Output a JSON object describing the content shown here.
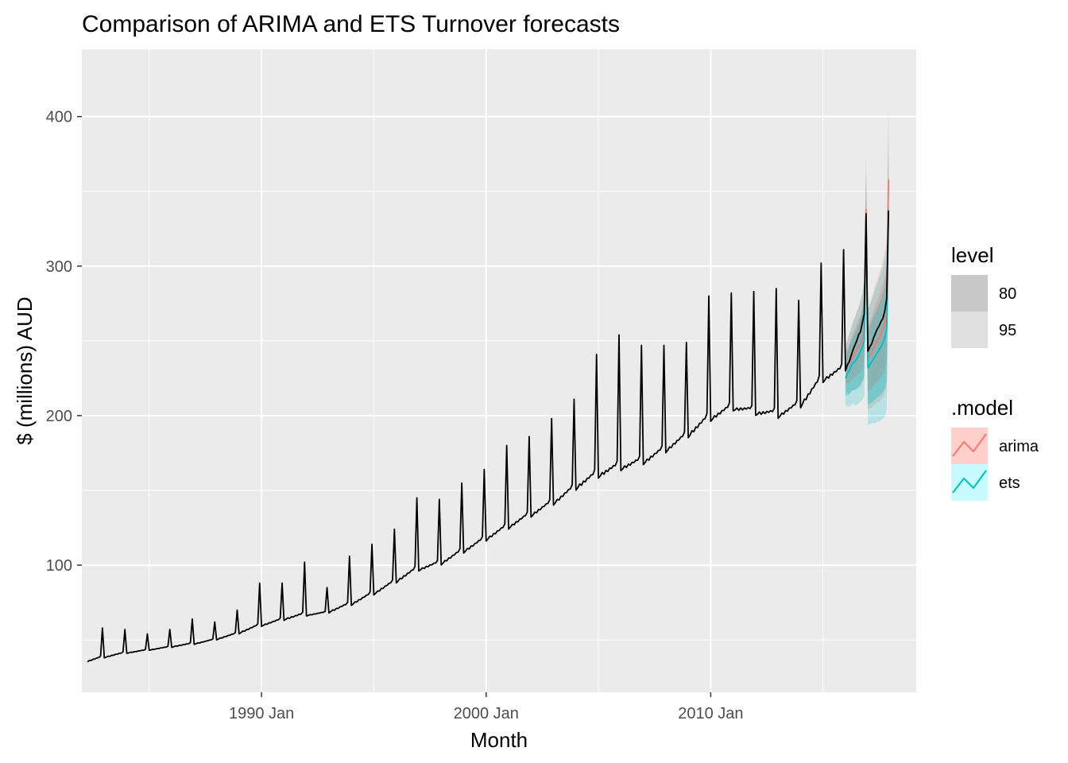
{
  "chart_data": {
    "type": "line",
    "title": "Comparison of ARIMA and ETS Turnover forecasts",
    "xlabel": "Month",
    "ylabel": "$ (millions) AUD",
    "xlim": [
      1982.0,
      2019.15
    ],
    "ylim": [
      15,
      445
    ],
    "x_ticks": [
      {
        "value": 1990,
        "label": "1990 Jan"
      },
      {
        "value": 2000,
        "label": "2000 Jan"
      },
      {
        "value": 2010,
        "label": "2010 Jan"
      }
    ],
    "y_ticks": [
      {
        "value": 100,
        "label": "100"
      },
      {
        "value": 200,
        "label": "200"
      },
      {
        "value": 300,
        "label": "300"
      },
      {
        "value": 400,
        "label": "400"
      }
    ],
    "grid": true,
    "background": "#ebebeb",
    "history": {
      "color": "#000000",
      "start": [
        1982,
        4
      ],
      "end": [
        2015,
        12
      ],
      "anchors": [
        {
          "year": 1982,
          "base": 34,
          "peak": 58
        },
        {
          "year": 1983,
          "base": 38,
          "peak": 57
        },
        {
          "year": 1984,
          "base": 41,
          "peak": 54
        },
        {
          "year": 1985,
          "base": 43,
          "peak": 57
        },
        {
          "year": 1986,
          "base": 45,
          "peak": 64
        },
        {
          "year": 1987,
          "base": 47,
          "peak": 62
        },
        {
          "year": 1988,
          "base": 50,
          "peak": 70
        },
        {
          "year": 1989,
          "base": 54,
          "peak": 88
        },
        {
          "year": 1990,
          "base": 59,
          "peak": 88
        },
        {
          "year": 1991,
          "base": 63,
          "peak": 102
        },
        {
          "year": 1992,
          "base": 66,
          "peak": 85
        },
        {
          "year": 1993,
          "base": 68,
          "peak": 106
        },
        {
          "year": 1994,
          "base": 73,
          "peak": 114
        },
        {
          "year": 1995,
          "base": 80,
          "peak": 124
        },
        {
          "year": 1996,
          "base": 88,
          "peak": 145
        },
        {
          "year": 1997,
          "base": 96,
          "peak": 144
        },
        {
          "year": 1998,
          "base": 100,
          "peak": 155
        },
        {
          "year": 1999,
          "base": 108,
          "peak": 164
        },
        {
          "year": 2000,
          "base": 116,
          "peak": 180
        },
        {
          "year": 2001,
          "base": 124,
          "peak": 186
        },
        {
          "year": 2002,
          "base": 132,
          "peak": 198
        },
        {
          "year": 2003,
          "base": 140,
          "peak": 211
        },
        {
          "year": 2004,
          "base": 150,
          "peak": 241
        },
        {
          "year": 2005,
          "base": 158,
          "peak": 254
        },
        {
          "year": 2006,
          "base": 163,
          "peak": 247
        },
        {
          "year": 2007,
          "base": 167,
          "peak": 247
        },
        {
          "year": 2008,
          "base": 175,
          "peak": 249
        },
        {
          "year": 2009,
          "base": 185,
          "peak": 280
        },
        {
          "year": 2010,
          "base": 196,
          "peak": 282
        },
        {
          "year": 2011,
          "base": 203,
          "peak": 283
        },
        {
          "year": 2012,
          "base": 200,
          "peak": 285
        },
        {
          "year": 2013,
          "base": 198,
          "peak": 277
        },
        {
          "year": 2014,
          "base": 205,
          "peak": 302
        },
        {
          "year": 2015,
          "base": 222,
          "peak": 311
        }
      ]
    },
    "test_actual": {
      "color": "#000000",
      "start": [
        2016,
        1
      ],
      "values": [
        230,
        234,
        236,
        240,
        244,
        247,
        250,
        254,
        256,
        262,
        268,
        335,
        243,
        246,
        248,
        252,
        255,
        258,
        260,
        263,
        265,
        270,
        278,
        337
      ]
    },
    "forecasts": {
      "start": [
        2016,
        1
      ],
      "horizon": 24,
      "series": [
        {
          "name": "arima",
          "color": "#f8766d",
          "fill": "#f8766d",
          "values": [
            232,
            233,
            235,
            237,
            240,
            242,
            244,
            246,
            248,
            252,
            258,
            338,
            238,
            240,
            242,
            245,
            248,
            250,
            252,
            255,
            258,
            262,
            268,
            358
          ],
          "pi80": [
            10,
            12,
            13,
            14,
            15,
            16,
            17,
            18,
            19,
            20,
            21,
            23,
            22,
            23,
            24,
            25,
            26,
            27,
            28,
            29,
            30,
            31,
            32,
            34
          ],
          "pi95": [
            15,
            18,
            20,
            21,
            23,
            24,
            26,
            27,
            29,
            30,
            32,
            35,
            34,
            35,
            37,
            38,
            40,
            41,
            43,
            44,
            46,
            47,
            49,
            52
          ]
        },
        {
          "name": "ets",
          "color": "#00bfc4",
          "fill": "#00bfc4",
          "values": [
            225,
            228,
            230,
            233,
            235,
            236,
            238,
            240,
            243,
            246,
            250,
            330,
            232,
            234,
            236,
            238,
            240,
            242,
            244,
            246,
            249,
            252,
            258,
            338
          ],
          "pi80": [
            12,
            14,
            16,
            17,
            18,
            19,
            20,
            21,
            22,
            23,
            24,
            27,
            25,
            26,
            27,
            28,
            29,
            30,
            31,
            32,
            33,
            34,
            35,
            39
          ],
          "pi95": [
            18,
            22,
            24,
            26,
            27,
            29,
            31,
            32,
            34,
            35,
            37,
            42,
            38,
            40,
            41,
            43,
            45,
            46,
            48,
            49,
            51,
            53,
            54,
            60
          ]
        }
      ]
    },
    "legend": {
      "placement": "right",
      "groups": [
        {
          "title": "level",
          "items": [
            {
              "label": "80",
              "color": "#c8c8c8"
            },
            {
              "label": "95",
              "color": "#e0e0e0"
            }
          ]
        },
        {
          "title": ".model",
          "items": [
            {
              "label": "arima",
              "color": "#f8766d",
              "fill": "#ffcfcb"
            },
            {
              "label": "ets",
              "color": "#00bfc4",
              "fill": "#c7fbfd"
            }
          ]
        }
      ]
    }
  }
}
